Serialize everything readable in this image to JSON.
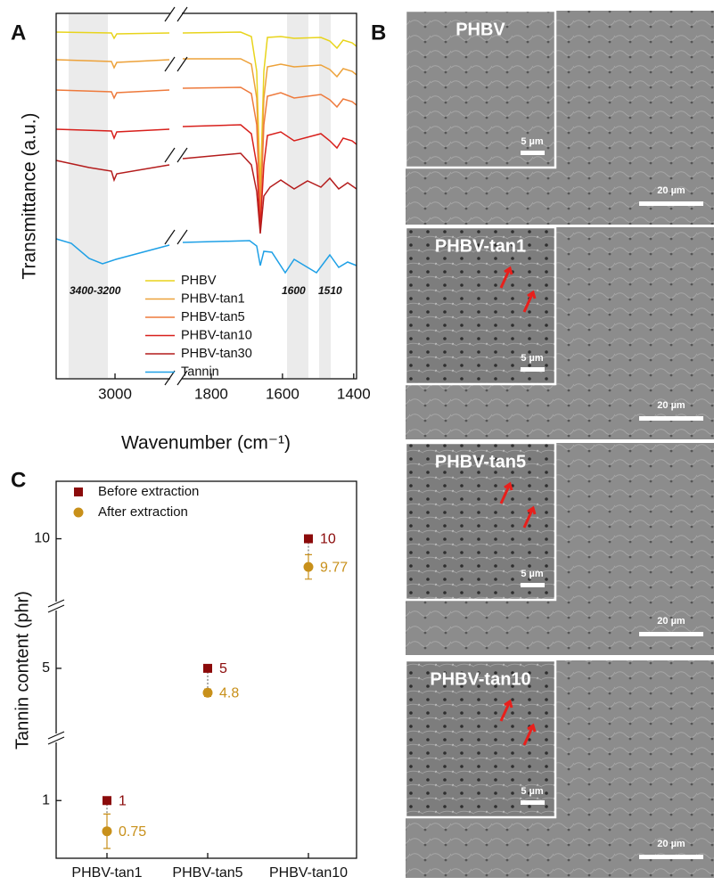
{
  "panel_labels": [
    "A",
    "B",
    "C"
  ],
  "chart_data": [
    {
      "type": "spectra",
      "x_label": "Wavenumber (cm⁻¹)",
      "y_label": "Transmittance (a.u.)",
      "xlim_segments": [
        [
          3300,
          2723
        ],
        [
          1880,
          1392
        ]
      ],
      "xticks": [
        3000,
        1800,
        1600,
        1400
      ],
      "annotations": [
        "3400-3200",
        "1600",
        "1510"
      ],
      "series": [
        {
          "name": "PHBV",
          "color": "#e8d41c"
        },
        {
          "name": "PHBV-tan1",
          "color": "#eda23a"
        },
        {
          "name": "PHBV-tan5",
          "color": "#ee7a3c"
        },
        {
          "name": "PHBV-tan10",
          "color": "#d8201c"
        },
        {
          "name": "PHBV-tan30",
          "color": "#b41c1c"
        },
        {
          "name": "Tannin",
          "color": "#1ea0e6"
        }
      ]
    },
    {
      "type": "dot",
      "y_label": "Tannin content (phr)",
      "categories": [
        "PHBV-tan1",
        "PHBV-tan5",
        "PHBV-tan10"
      ],
      "ylim_segments": [
        [
          0.53,
          1.51
        ],
        [
          4.43,
          5.51
        ],
        [
          9.45,
          10.47
        ]
      ],
      "yticks": [
        1,
        5,
        10
      ],
      "series": [
        {
          "name": "Before extraction",
          "color": "#8b0a0a",
          "marker": "square",
          "values": [
            1,
            5,
            10
          ]
        },
        {
          "name": "After extraction",
          "color": "#c8901a",
          "marker": "circle",
          "values": [
            0.75,
            4.8,
            9.77
          ],
          "errors": [
            0.14,
            0.03,
            0.1
          ]
        }
      ]
    }
  ],
  "sem_panels": [
    {
      "label": "PHBV",
      "inset_scale": "5 µm",
      "scale": "20 µm"
    },
    {
      "label": "PHBV-tan1",
      "inset_scale": "5 µm",
      "scale": "20 µm"
    },
    {
      "label": "PHBV-tan5",
      "inset_scale": "5 µm",
      "scale": "20 µm"
    },
    {
      "label": "PHBV-tan10",
      "inset_scale": "5 µm",
      "scale": "20 µm"
    }
  ]
}
